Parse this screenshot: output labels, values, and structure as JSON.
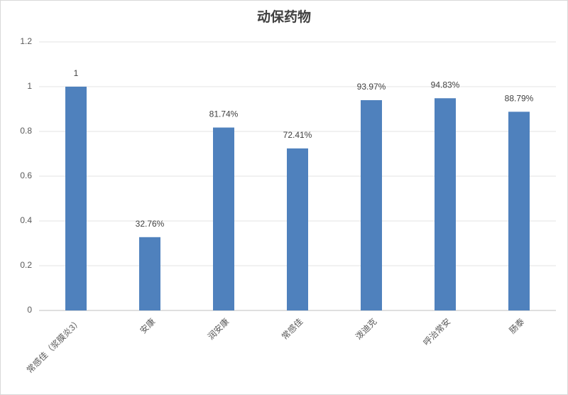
{
  "chart_data": {
    "type": "bar",
    "title": "动保药物",
    "categories": [
      "常感佳（浆膜炎3）",
      "安康",
      "润安康",
      "常感佳",
      "泼迪克",
      "呼治常安",
      "肠泰"
    ],
    "values": [
      1,
      0.3276,
      0.8174,
      0.7241,
      0.9397,
      0.9483,
      0.8879
    ],
    "value_labels": [
      "1",
      "32.76%",
      "81.74%",
      "72.41%",
      "93.97%",
      "94.83%",
      "88.79%"
    ],
    "color": "#4f81bd",
    "ylim": [
      0,
      1.2
    ],
    "yticks": [
      0,
      0.2,
      0.4,
      0.6,
      0.8,
      1,
      1.2
    ],
    "grid": true
  }
}
